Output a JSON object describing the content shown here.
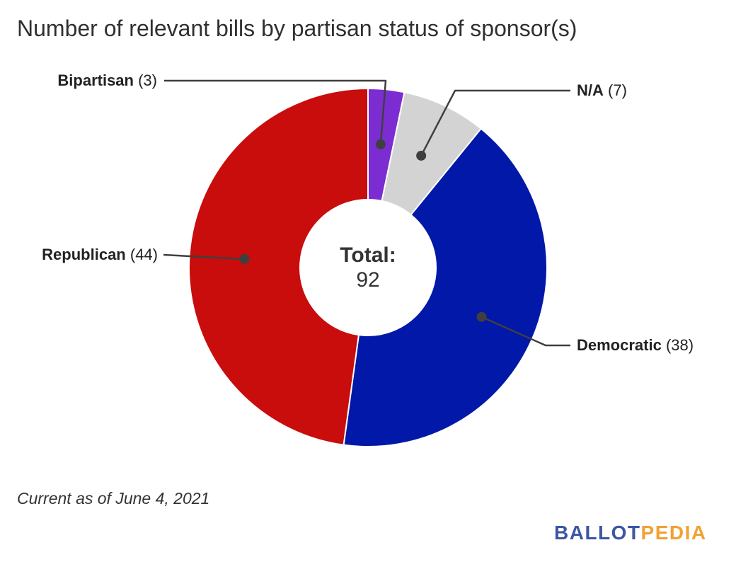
{
  "title": "Number of relevant bills by partisan status of sponsor(s)",
  "center": {
    "label": "Total:",
    "value": "92"
  },
  "footnote": "Current as of June 4, 2021",
  "logo": {
    "part1": "BALLOT",
    "part2": "PEDIA",
    "part1_color": "#3c56a6",
    "part2_color": "#f0a232"
  },
  "chart_data": {
    "type": "pie",
    "donut": true,
    "title": "Number of relevant bills by partisan status of sponsor(s)",
    "total": 92,
    "direction": "clockwise",
    "start_angle_deg": 0,
    "center_text": "Total: 92",
    "leader_color": "#3f3f3f",
    "segments": [
      {
        "label": "Bipartisan",
        "value": 3,
        "count_label": "(3)",
        "color": "#7c2dd1"
      },
      {
        "label": "N/A",
        "value": 7,
        "count_label": "(7)",
        "color": "#d3d3d3"
      },
      {
        "label": "Democratic",
        "value": 38,
        "count_label": "(38)",
        "color": "#0218a8"
      },
      {
        "label": "Republican",
        "value": 44,
        "count_label": "(44)",
        "color": "#c90c0c"
      }
    ]
  }
}
